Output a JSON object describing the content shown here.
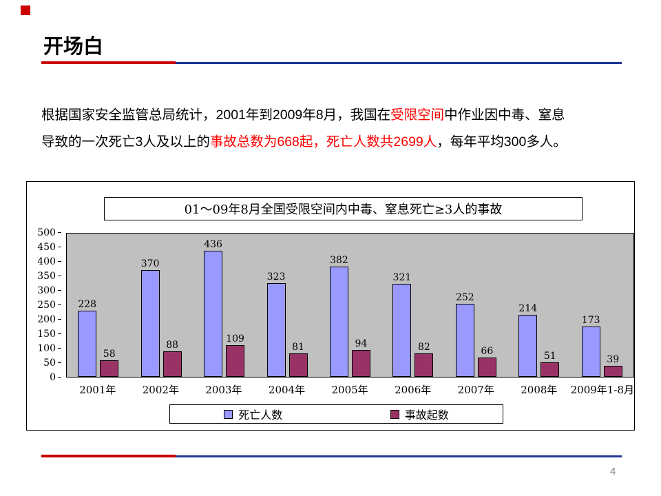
{
  "colors": {
    "accent-red": "#cc0000",
    "accent-blue": "#1f3899",
    "text-red": "#ff0000",
    "plot-bg": "#c0c0c0"
  },
  "slide": {
    "title": "开场白",
    "page_number": "4"
  },
  "body": {
    "line1": [
      {
        "text": "根据国家安全监管总局统计，2001年到2009年8月，我国在",
        "red": false
      },
      {
        "text": "受限空间",
        "red": true
      },
      {
        "text": "中作业因中毒、窒息",
        "red": false
      }
    ],
    "line2": [
      {
        "text": "导致的一次死亡3人及以上的",
        "red": false
      },
      {
        "text": "事故总数为668起，死亡人数共2699人",
        "red": true
      },
      {
        "text": "，每年平均300多人。",
        "red": false
      }
    ]
  },
  "chart_data": {
    "type": "bar",
    "title": "01～09年8月全国受限空间内中毒、窒息死亡≥3人的事故",
    "categories": [
      "2001年",
      "2002年",
      "2003年",
      "2004年",
      "2005年",
      "2006年",
      "2007年",
      "2008年",
      "2009年1-8月"
    ],
    "series": [
      {
        "name": "死亡人数",
        "color": "#9999ff",
        "values": [
          228,
          370,
          436,
          323,
          382,
          321,
          252,
          214,
          173
        ]
      },
      {
        "name": "事故起数",
        "color": "#993366",
        "values": [
          58,
          88,
          109,
          81,
          94,
          82,
          66,
          51,
          39
        ]
      }
    ],
    "ylim": [
      0,
      500
    ],
    "yticks": [
      0,
      50,
      100,
      150,
      200,
      250,
      300,
      350,
      400,
      450,
      500
    ],
    "grid": false,
    "legend_position": "bottom",
    "plot_background": "#c0c0c0"
  }
}
